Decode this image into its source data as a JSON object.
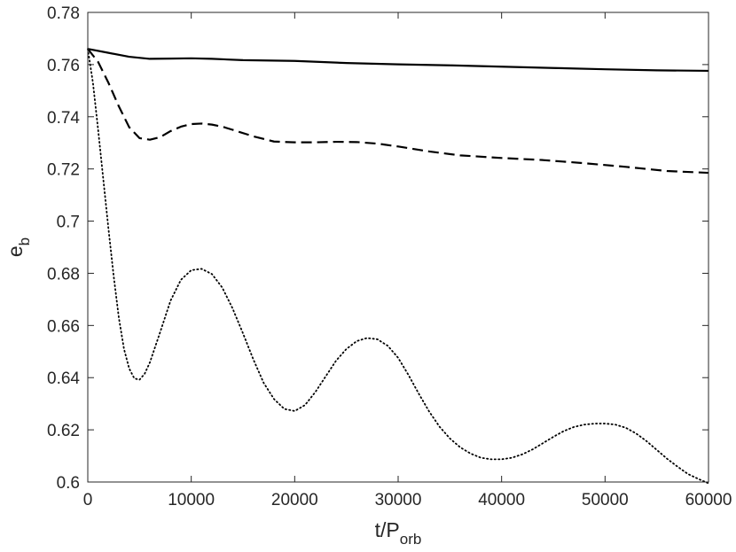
{
  "chart_data": {
    "type": "line",
    "xlabel": {
      "main": "t/P",
      "sub": "orb"
    },
    "ylabel": {
      "main": "e",
      "sub": "b"
    },
    "xlim": [
      0,
      60000
    ],
    "ylim": [
      0.6,
      0.78
    ],
    "xticks": [
      0,
      10000,
      20000,
      30000,
      40000,
      50000,
      60000
    ],
    "xtick_labels": [
      "0",
      "10000",
      "20000",
      "30000",
      "40000",
      "50000",
      "60000"
    ],
    "yticks": [
      0.6,
      0.62,
      0.64,
      0.66,
      0.68,
      0.7,
      0.72,
      0.74,
      0.76,
      0.78
    ],
    "ytick_labels": [
      "0.6",
      "0.62",
      "0.64",
      "0.66",
      "0.68",
      "0.7",
      "0.72",
      "0.74",
      "0.76",
      "0.78"
    ],
    "grid": false,
    "colors": {
      "line": "#000000",
      "axis": "#262626"
    },
    "series": [
      {
        "style": "solid",
        "x": [
          0,
          2000,
          4000,
          6000,
          8000,
          10000,
          12000,
          15000,
          20000,
          25000,
          30000,
          35000,
          40000,
          45000,
          50000,
          55000,
          60000
        ],
        "y": [
          0.766,
          0.7645,
          0.763,
          0.7622,
          0.7623,
          0.7624,
          0.7622,
          0.7617,
          0.7614,
          0.7606,
          0.7601,
          0.7597,
          0.7592,
          0.7587,
          0.7582,
          0.7578,
          0.7576
        ]
      },
      {
        "style": "dashed",
        "x": [
          0,
          1000,
          2000,
          3000,
          4000,
          5000,
          6000,
          7000,
          8000,
          9000,
          10000,
          11000,
          12000,
          13000,
          14000,
          16000,
          18000,
          20000,
          22000,
          24000,
          26000,
          28000,
          30000,
          33000,
          36000,
          40000,
          44000,
          48000,
          52000,
          56000,
          60000
        ],
        "y": [
          0.766,
          0.761,
          0.753,
          0.744,
          0.736,
          0.7318,
          0.7312,
          0.7322,
          0.7345,
          0.7362,
          0.7372,
          0.7374,
          0.737,
          0.7362,
          0.735,
          0.7325,
          0.7305,
          0.7302,
          0.7302,
          0.7304,
          0.7303,
          0.7297,
          0.7286,
          0.7267,
          0.7252,
          0.7242,
          0.7234,
          0.7222,
          0.7208,
          0.7192,
          0.7185
        ]
      },
      {
        "style": "dotted",
        "x": [
          0,
          500,
          1000,
          1500,
          2000,
          2500,
          3000,
          3500,
          4000,
          4500,
          5000,
          5500,
          6000,
          7000,
          8000,
          9000,
          10000,
          11000,
          12000,
          13000,
          14000,
          15000,
          16000,
          17000,
          18000,
          19000,
          20000,
          21000,
          22000,
          23000,
          24000,
          25000,
          26000,
          27000,
          28000,
          29000,
          30000,
          31000,
          32000,
          33000,
          34000,
          35000,
          36000,
          37000,
          38000,
          39000,
          40000,
          41000,
          42000,
          43000,
          44000,
          45000,
          46000,
          47000,
          48000,
          49000,
          50000,
          51000,
          52000,
          53000,
          54000,
          55000,
          56000,
          57000,
          58000,
          59000,
          60000
        ],
        "y": [
          0.766,
          0.753,
          0.735,
          0.716,
          0.697,
          0.679,
          0.663,
          0.651,
          0.6435,
          0.6397,
          0.6392,
          0.6415,
          0.6458,
          0.6575,
          0.6695,
          0.6775,
          0.6812,
          0.6817,
          0.6797,
          0.6745,
          0.6665,
          0.657,
          0.647,
          0.638,
          0.6318,
          0.628,
          0.6272,
          0.6295,
          0.6345,
          0.6405,
          0.6465,
          0.651,
          0.654,
          0.6552,
          0.6547,
          0.6522,
          0.6476,
          0.641,
          0.6338,
          0.627,
          0.6212,
          0.6167,
          0.6133,
          0.6109,
          0.6093,
          0.6087,
          0.6087,
          0.6093,
          0.6106,
          0.6125,
          0.6149,
          0.6173,
          0.6195,
          0.6211,
          0.622,
          0.6224,
          0.6224,
          0.622,
          0.6208,
          0.6186,
          0.6157,
          0.6123,
          0.6089,
          0.6059,
          0.6031,
          0.6012,
          0.5995
        ]
      }
    ]
  }
}
